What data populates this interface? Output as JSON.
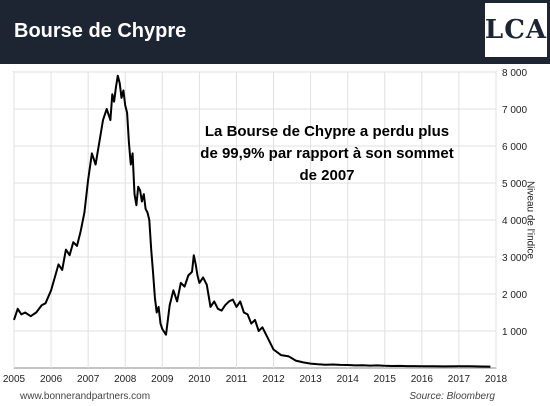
{
  "header": {
    "title": "Bourse de Chypre",
    "logo_text": "LCA",
    "logo_mark": "❧",
    "background_color": "#1d2533"
  },
  "footer": {
    "website": "www.bonnerandpartners.com",
    "source": "Source: Bloomberg"
  },
  "chart_data": {
    "type": "line",
    "annotation": "La Bourse de Chypre a perdu plus de 99,9% par rapport à son sommet de 2007",
    "xlabel": "",
    "ylabel": "Niveau de l'indice",
    "xlim": [
      2005,
      2018
    ],
    "ylim": [
      0,
      8000
    ],
    "x_ticks": [
      2005,
      2006,
      2007,
      2008,
      2009,
      2010,
      2011,
      2012,
      2013,
      2014,
      2015,
      2016,
      2017,
      2018
    ],
    "y_ticks": [
      1000,
      2000,
      3000,
      4000,
      5000,
      6000,
      7000,
      8000
    ],
    "y_tick_labels": [
      "1 000",
      "2 000",
      "3 000",
      "4 000",
      "5 000",
      "6 000",
      "7 000",
      "8 000"
    ],
    "grid": true,
    "line_color": "#000000",
    "series": [
      {
        "x": [
          2005.0,
          2005.1,
          2005.2,
          2005.3,
          2005.45,
          2005.6,
          2005.75,
          2005.85,
          2006.0,
          2006.1,
          2006.2,
          2006.3,
          2006.4,
          2006.5,
          2006.6,
          2006.7,
          2006.8,
          2006.9,
          2007.0,
          2007.1,
          2007.2,
          2007.3,
          2007.4,
          2007.5,
          2007.6,
          2007.65,
          2007.7,
          2007.75,
          2007.8,
          2007.85,
          2007.9,
          2007.95,
          2008.0,
          2008.05,
          2008.1,
          2008.15,
          2008.2,
          2008.25,
          2008.3,
          2008.35,
          2008.4,
          2008.45,
          2008.5,
          2008.55,
          2008.6,
          2008.65,
          2008.7,
          2008.75,
          2008.8,
          2008.85,
          2008.9,
          2008.95,
          2009.0,
          2009.1,
          2009.2,
          2009.3,
          2009.4,
          2009.5,
          2009.6,
          2009.7,
          2009.8,
          2009.85,
          2009.9,
          2009.95,
          2010.0,
          2010.1,
          2010.2,
          2010.3,
          2010.4,
          2010.5,
          2010.6,
          2010.7,
          2010.8,
          2010.9,
          2011.0,
          2011.1,
          2011.2,
          2011.3,
          2011.4,
          2011.5,
          2011.6,
          2011.7,
          2011.8,
          2011.9,
          2012.0,
          2012.2,
          2012.4,
          2012.6,
          2012.8,
          2013.0,
          2013.2,
          2013.4,
          2013.6,
          2013.8,
          2014.0,
          2014.2,
          2014.4,
          2014.6,
          2014.8,
          2015.0,
          2015.2,
          2015.4,
          2015.6,
          2015.8,
          2016.0,
          2016.3,
          2016.6,
          2017.0,
          2017.3,
          2017.6,
          2017.85
        ],
        "y": [
          1300,
          1600,
          1450,
          1500,
          1400,
          1500,
          1700,
          1750,
          2100,
          2450,
          2800,
          2650,
          3200,
          3050,
          3400,
          3300,
          3700,
          4200,
          5100,
          5800,
          5500,
          6100,
          6700,
          7000,
          6700,
          7400,
          7200,
          7600,
          7900,
          7700,
          7300,
          7500,
          7100,
          6900,
          6100,
          5500,
          5800,
          4700,
          4400,
          4900,
          4800,
          4500,
          4700,
          4300,
          4200,
          4000,
          3200,
          2600,
          1900,
          1500,
          1650,
          1200,
          1050,
          900,
          1700,
          2100,
          1800,
          2300,
          2200,
          2500,
          2600,
          3050,
          2800,
          2500,
          2300,
          2450,
          2250,
          1650,
          1800,
          1600,
          1550,
          1700,
          1800,
          1850,
          1650,
          1800,
          1500,
          1450,
          1200,
          1300,
          1000,
          1100,
          900,
          700,
          500,
          350,
          320,
          200,
          150,
          120,
          100,
          90,
          95,
          85,
          80,
          70,
          75,
          65,
          70,
          60,
          55,
          58,
          52,
          50,
          48,
          46,
          44,
          48,
          45,
          40,
          38
        ]
      }
    ]
  }
}
